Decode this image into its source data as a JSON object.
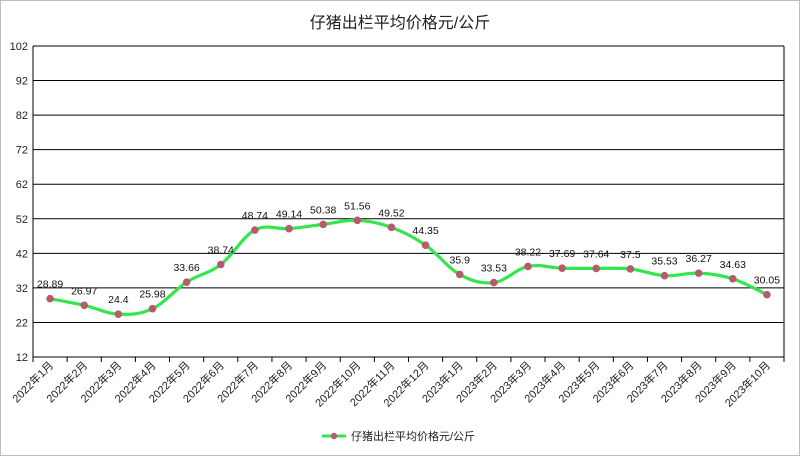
{
  "chart_data": {
    "type": "line",
    "title": "仔猪出栏平均价格元/公斤",
    "categories": [
      "2022年1月",
      "2022年2月",
      "2022年3月",
      "2022年4月",
      "2022年5月",
      "2022年6月",
      "2022年7月",
      "2022年8月",
      "2022年9月",
      "2022年10月",
      "2022年11月",
      "2022年12月",
      "2023年1月",
      "2023年2月",
      "2023年3月",
      "2023年4月",
      "2023年5月",
      "2023年6月",
      "2023年7月",
      "2023年8月",
      "2023年9月",
      "2023年10月"
    ],
    "series": [
      {
        "name": "仔猪出栏平均价格元/公斤",
        "values": [
          28.89,
          26.97,
          24.4,
          25.98,
          33.66,
          38.74,
          48.74,
          49.14,
          50.38,
          51.56,
          49.52,
          44.35,
          35.9,
          33.53,
          38.22,
          37.69,
          37.64,
          37.5,
          35.53,
          36.27,
          34.63,
          30.05
        ],
        "data_labels": [
          "28.89",
          "26.97",
          "24.4",
          "25.98",
          "33.66",
          "38.74",
          "48.74",
          "49.14",
          "50.38",
          "51.56",
          "49.52",
          "44.35",
          "35.9",
          "33.53",
          "38.22",
          "37.69",
          "37.64",
          "37.5",
          "35.53",
          "36.27",
          "34.63",
          "30.05"
        ]
      }
    ],
    "ylim": [
      12,
      102
    ],
    "yticks": [
      "12",
      "22",
      "32",
      "42",
      "52",
      "62",
      "72",
      "82",
      "92",
      "102"
    ],
    "grid": true,
    "legend_position": "bottom",
    "colors": {
      "line": "#33e64d",
      "marker": "#b85a6e",
      "grid": "#000000"
    }
  }
}
